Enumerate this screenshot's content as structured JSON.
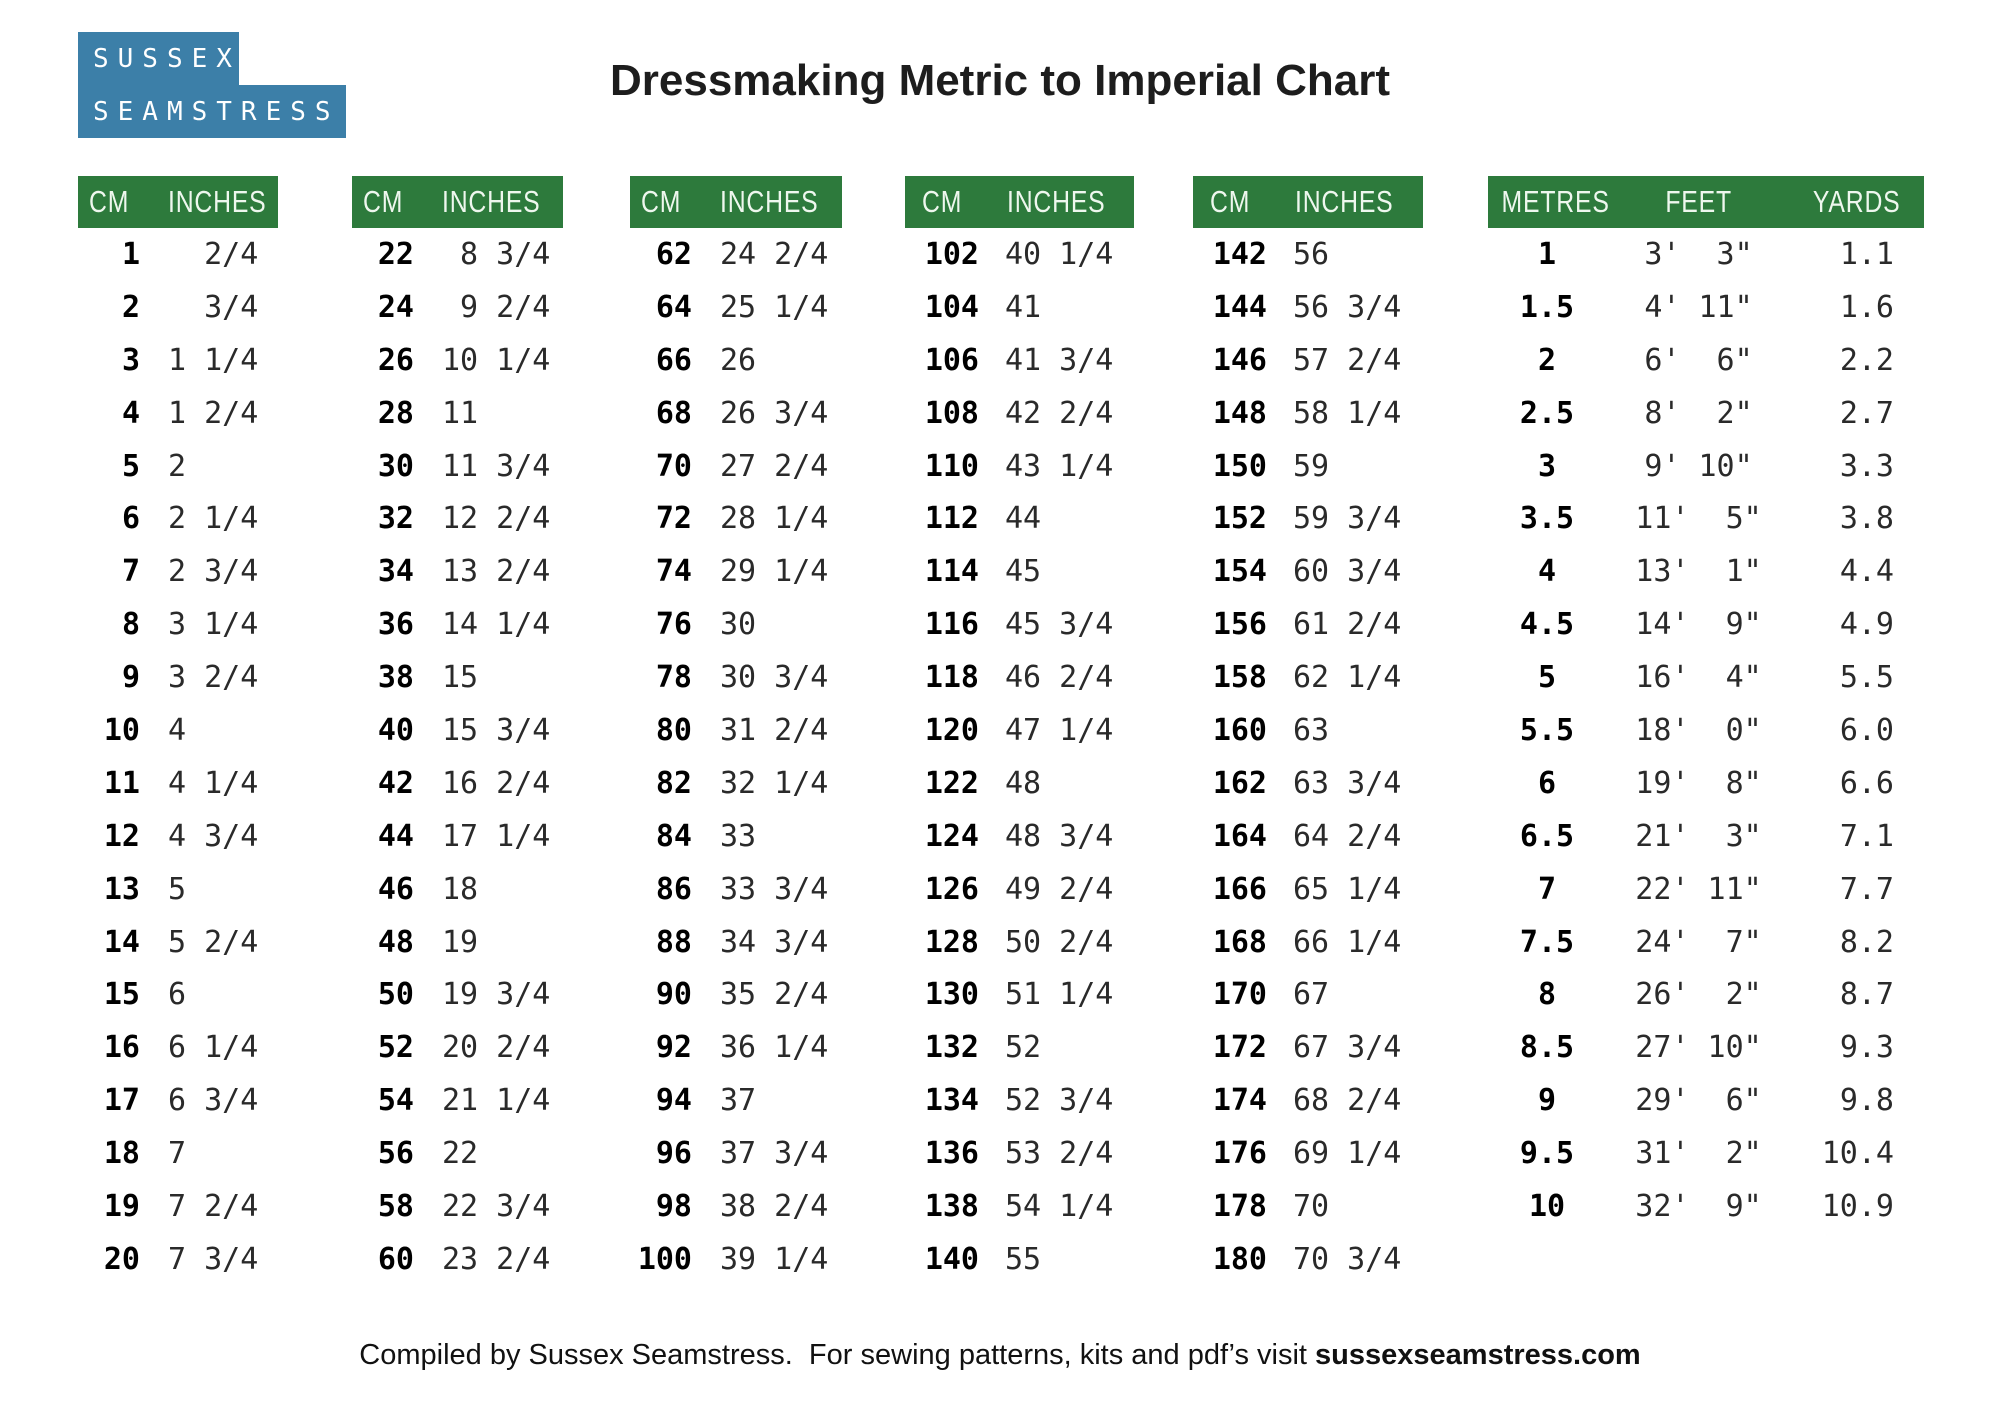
{
  "logo": {
    "line1": "SUSSEX",
    "line2": "SEAMSTRESS"
  },
  "title": "Dressmaking Metric to Imperial Chart",
  "colors": {
    "header_green": "#2d7a3c",
    "logo_blue": "#3c7fa8",
    "text_black": "#1d1d1d"
  },
  "chart_data": [
    {
      "type": "table",
      "name": "cm-to-inches-1-20",
      "columns": [
        "CM",
        "INCHES"
      ],
      "rows": [
        [
          "1",
          "  2/4"
        ],
        [
          "2",
          "  3/4"
        ],
        [
          "3",
          "1 1/4"
        ],
        [
          "4",
          "1 2/4"
        ],
        [
          "5",
          "2"
        ],
        [
          "6",
          "2 1/4"
        ],
        [
          "7",
          "2 3/4"
        ],
        [
          "8",
          "3 1/4"
        ],
        [
          "9",
          "3 2/4"
        ],
        [
          "10",
          "4"
        ],
        [
          "11",
          "4 1/4"
        ],
        [
          "12",
          "4 3/4"
        ],
        [
          "13",
          "5"
        ],
        [
          "14",
          "5 2/4"
        ],
        [
          "15",
          "6"
        ],
        [
          "16",
          "6 1/4"
        ],
        [
          "17",
          "6 3/4"
        ],
        [
          "18",
          "7"
        ],
        [
          "19",
          "7 2/4"
        ],
        [
          "20",
          "7 3/4"
        ]
      ]
    },
    {
      "type": "table",
      "name": "cm-to-inches-22-60",
      "columns": [
        "CM",
        "INCHES"
      ],
      "rows": [
        [
          "22",
          " 8 3/4"
        ],
        [
          "24",
          " 9 2/4"
        ],
        [
          "26",
          "10 1/4"
        ],
        [
          "28",
          "11"
        ],
        [
          "30",
          "11 3/4"
        ],
        [
          "32",
          "12 2/4"
        ],
        [
          "34",
          "13 2/4"
        ],
        [
          "36",
          "14 1/4"
        ],
        [
          "38",
          "15"
        ],
        [
          "40",
          "15 3/4"
        ],
        [
          "42",
          "16 2/4"
        ],
        [
          "44",
          "17 1/4"
        ],
        [
          "46",
          "18"
        ],
        [
          "48",
          "19"
        ],
        [
          "50",
          "19 3/4"
        ],
        [
          "52",
          "20 2/4"
        ],
        [
          "54",
          "21 1/4"
        ],
        [
          "56",
          "22"
        ],
        [
          "58",
          "22 3/4"
        ],
        [
          "60",
          "23 2/4"
        ]
      ]
    },
    {
      "type": "table",
      "name": "cm-to-inches-62-100",
      "columns": [
        "CM",
        "INCHES"
      ],
      "rows": [
        [
          "62",
          "24 2/4"
        ],
        [
          "64",
          "25 1/4"
        ],
        [
          "66",
          "26"
        ],
        [
          "68",
          "26 3/4"
        ],
        [
          "70",
          "27 2/4"
        ],
        [
          "72",
          "28 1/4"
        ],
        [
          "74",
          "29 1/4"
        ],
        [
          "76",
          "30"
        ],
        [
          "78",
          "30 3/4"
        ],
        [
          "80",
          "31 2/4"
        ],
        [
          "82",
          "32 1/4"
        ],
        [
          "84",
          "33"
        ],
        [
          "86",
          "33 3/4"
        ],
        [
          "88",
          "34 3/4"
        ],
        [
          "90",
          "35 2/4"
        ],
        [
          "92",
          "36 1/4"
        ],
        [
          "94",
          "37"
        ],
        [
          "96",
          "37 3/4"
        ],
        [
          "98",
          "38 2/4"
        ],
        [
          "100",
          "39 1/4"
        ]
      ]
    },
    {
      "type": "table",
      "name": "cm-to-inches-102-140",
      "columns": [
        "CM",
        "INCHES"
      ],
      "rows": [
        [
          "102",
          "40 1/4"
        ],
        [
          "104",
          "41"
        ],
        [
          "106",
          "41 3/4"
        ],
        [
          "108",
          "42 2/4"
        ],
        [
          "110",
          "43 1/4"
        ],
        [
          "112",
          "44"
        ],
        [
          "114",
          "45"
        ],
        [
          "116",
          "45 3/4"
        ],
        [
          "118",
          "46 2/4"
        ],
        [
          "120",
          "47 1/4"
        ],
        [
          "122",
          "48"
        ],
        [
          "124",
          "48 3/4"
        ],
        [
          "126",
          "49 2/4"
        ],
        [
          "128",
          "50 2/4"
        ],
        [
          "130",
          "51 1/4"
        ],
        [
          "132",
          "52"
        ],
        [
          "134",
          "52 3/4"
        ],
        [
          "136",
          "53 2/4"
        ],
        [
          "138",
          "54 1/4"
        ],
        [
          "140",
          "55"
        ]
      ]
    },
    {
      "type": "table",
      "name": "cm-to-inches-142-180",
      "columns": [
        "CM",
        "INCHES"
      ],
      "rows": [
        [
          "142",
          "56"
        ],
        [
          "144",
          "56 3/4"
        ],
        [
          "146",
          "57 2/4"
        ],
        [
          "148",
          "58 1/4"
        ],
        [
          "150",
          "59"
        ],
        [
          "152",
          "59 3/4"
        ],
        [
          "154",
          "60 3/4"
        ],
        [
          "156",
          "61 2/4"
        ],
        [
          "158",
          "62 1/4"
        ],
        [
          "160",
          "63"
        ],
        [
          "162",
          "63 3/4"
        ],
        [
          "164",
          "64 2/4"
        ],
        [
          "166",
          "65 1/4"
        ],
        [
          "168",
          "66 1/4"
        ],
        [
          "170",
          "67"
        ],
        [
          "172",
          "67 3/4"
        ],
        [
          "174",
          "68 2/4"
        ],
        [
          "176",
          "69 1/4"
        ],
        [
          "178",
          "70"
        ],
        [
          "180",
          "70 3/4"
        ]
      ]
    },
    {
      "type": "table",
      "name": "metres-feet-yards",
      "columns": [
        "METRES",
        "FEET",
        "YARDS"
      ],
      "rows": [
        [
          "1",
          "3'  3\"",
          "1.1"
        ],
        [
          "1.5",
          "4' 11\"",
          "1.6"
        ],
        [
          "2",
          "6'  6\"",
          "2.2"
        ],
        [
          "2.5",
          "8'  2\"",
          "2.7"
        ],
        [
          "3",
          "9' 10\"",
          "3.3"
        ],
        [
          "3.5",
          "11'  5\"",
          "3.8"
        ],
        [
          "4",
          "13'  1\"",
          "4.4"
        ],
        [
          "4.5",
          "14'  9\"",
          "4.9"
        ],
        [
          "5",
          "16'  4\"",
          "5.5"
        ],
        [
          "5.5",
          "18'  0\"",
          "6.0"
        ],
        [
          "6",
          "19'  8\"",
          "6.6"
        ],
        [
          "6.5",
          "21'  3\"",
          "7.1"
        ],
        [
          "7",
          "22' 11\"",
          "7.7"
        ],
        [
          "7.5",
          "24'  7\"",
          "8.2"
        ],
        [
          "8",
          "26'  2\"",
          "8.7"
        ],
        [
          "8.5",
          "27' 10\"",
          "9.3"
        ],
        [
          "9",
          "29'  6\"",
          "9.8"
        ],
        [
          "9.5",
          "31'  2\"",
          "10.4"
        ],
        [
          "10",
          "32'  9\"",
          "10.9"
        ]
      ]
    }
  ],
  "footer": {
    "prefix": "Compiled by Sussex Seamstress.  For sewing patterns, kits and pdf’s visit ",
    "site": "sussexseamstress.com"
  }
}
